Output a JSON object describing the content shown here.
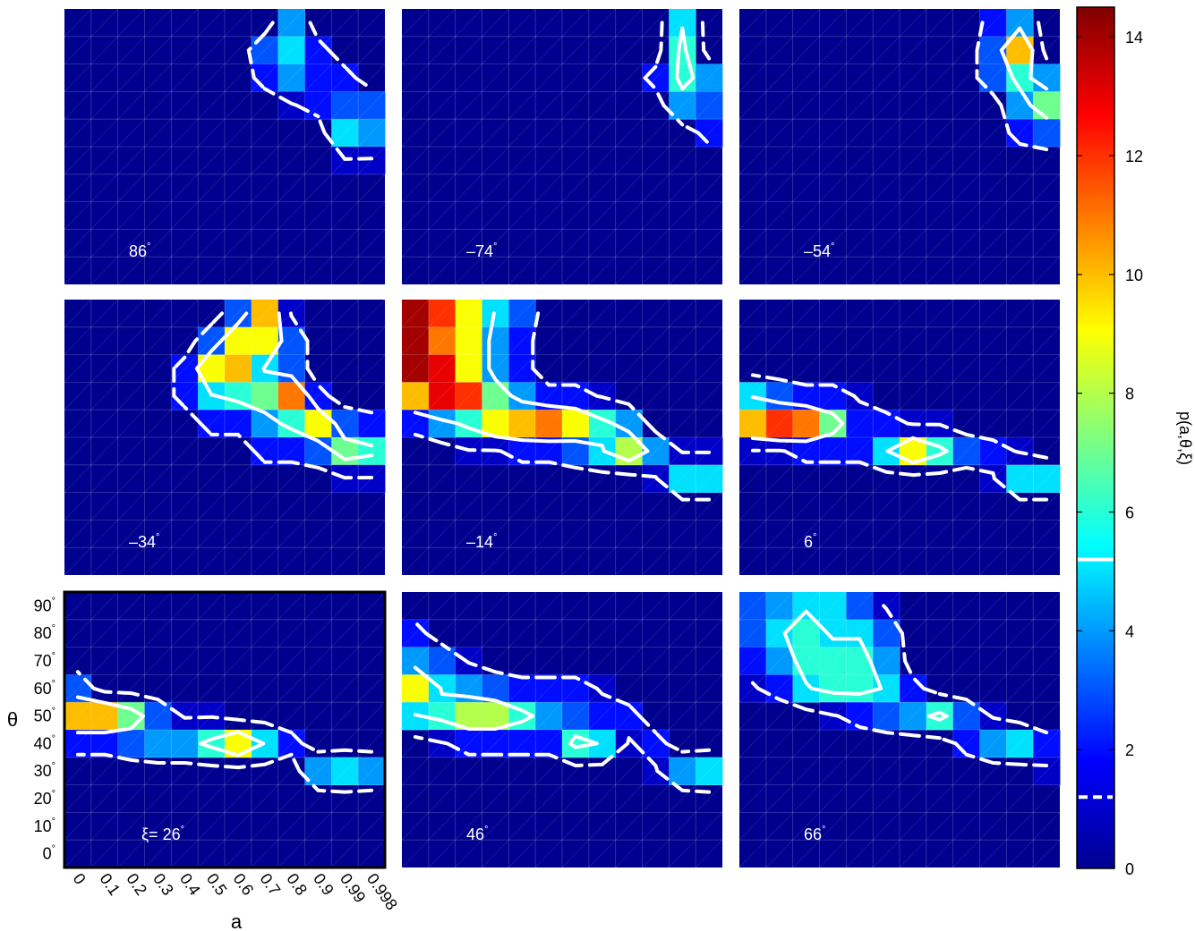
{
  "chart_data": {
    "type": "heatmap",
    "x_label": "a",
    "y_label": "θ",
    "x_ticks": [
      "0",
      "0.1",
      "0.2",
      "0.3",
      "0.4",
      "0.5",
      "0.6",
      "0.7",
      "0.8",
      "0.9",
      "0.99",
      "0.998"
    ],
    "y_ticks": [
      "0°",
      "10°",
      "20°",
      "30°",
      "40°",
      "50°",
      "60°",
      "70°",
      "80°",
      "90°"
    ],
    "colorbar": {
      "label": "p(a,θ,ξ)",
      "min": 0,
      "max": 14.5,
      "ticks": [
        0,
        2,
        4,
        6,
        8,
        10,
        12,
        14
      ],
      "solid_contour_level": 5.2,
      "dashed_contour_level": 1.2,
      "colormap": "jet"
    },
    "panels": [
      {
        "label": "86°",
        "grid": [
          [
            0,
            0,
            0,
            0,
            0,
            0,
            0,
            0,
            4,
            0,
            0,
            0
          ],
          [
            0,
            0,
            0,
            0,
            0,
            0,
            0,
            3,
            5,
            2,
            0,
            0
          ],
          [
            0,
            0,
            0,
            0,
            0,
            0,
            0,
            2,
            4,
            2,
            2,
            0
          ],
          [
            0,
            0,
            0,
            0,
            0,
            0,
            0,
            0,
            1,
            2,
            3,
            3
          ],
          [
            0,
            0,
            0,
            0,
            0,
            0,
            0,
            0,
            0,
            0,
            5,
            4
          ],
          [
            0,
            0,
            0,
            0,
            0,
            0,
            0,
            0,
            0,
            0,
            1,
            1
          ],
          [
            0,
            0,
            0,
            0,
            0,
            0,
            0,
            0,
            0,
            0,
            0,
            0
          ],
          [
            0,
            0,
            0,
            0,
            0,
            0,
            0,
            0,
            0,
            0,
            0,
            0
          ],
          [
            0,
            0,
            0,
            0,
            0,
            0,
            0,
            0,
            0,
            0,
            0,
            0
          ],
          [
            0,
            0,
            0,
            0,
            0,
            0,
            0,
            0,
            0,
            0,
            0,
            0
          ]
        ]
      },
      {
        "label": "–74°",
        "grid": [
          [
            0,
            0,
            0,
            0,
            0,
            0,
            0,
            0,
            0,
            0,
            5,
            0
          ],
          [
            0,
            0,
            0,
            0,
            0,
            0,
            0,
            0,
            0,
            0,
            6,
            0
          ],
          [
            0,
            0,
            0,
            0,
            0,
            0,
            0,
            0,
            0,
            2,
            6,
            4
          ],
          [
            0,
            0,
            0,
            0,
            0,
            0,
            0,
            0,
            0,
            0,
            4,
            3
          ],
          [
            0,
            0,
            0,
            0,
            0,
            0,
            0,
            0,
            0,
            0,
            0,
            2
          ],
          [
            0,
            0,
            0,
            0,
            0,
            0,
            0,
            0,
            0,
            0,
            0,
            0
          ],
          [
            0,
            0,
            0,
            0,
            0,
            0,
            0,
            0,
            0,
            0,
            0,
            0
          ],
          [
            0,
            0,
            0,
            0,
            0,
            0,
            0,
            0,
            0,
            0,
            0,
            0
          ],
          [
            0,
            0,
            0,
            0,
            0,
            0,
            0,
            0,
            0,
            0,
            0,
            0
          ],
          [
            0,
            0,
            0,
            0,
            0,
            0,
            0,
            0,
            0,
            0,
            0,
            0
          ]
        ]
      },
      {
        "label": "–54°",
        "grid": [
          [
            0,
            0,
            0,
            0,
            0,
            0,
            0,
            0,
            0,
            2,
            4,
            0
          ],
          [
            0,
            0,
            0,
            0,
            0,
            0,
            0,
            0,
            0,
            3,
            10,
            0
          ],
          [
            0,
            0,
            0,
            0,
            0,
            0,
            0,
            0,
            0,
            3,
            6,
            4
          ],
          [
            0,
            0,
            0,
            0,
            0,
            0,
            0,
            0,
            0,
            0,
            4,
            7
          ],
          [
            0,
            0,
            0,
            0,
            0,
            0,
            0,
            0,
            0,
            0,
            2,
            3
          ],
          [
            0,
            0,
            0,
            0,
            0,
            0,
            0,
            0,
            0,
            0,
            0,
            0
          ],
          [
            0,
            0,
            0,
            0,
            0,
            0,
            0,
            0,
            0,
            0,
            0,
            0
          ],
          [
            0,
            0,
            0,
            0,
            0,
            0,
            0,
            0,
            0,
            0,
            0,
            0
          ],
          [
            0,
            0,
            0,
            0,
            0,
            0,
            0,
            0,
            0,
            0,
            0,
            0
          ],
          [
            0,
            0,
            0,
            0,
            0,
            0,
            0,
            0,
            0,
            0,
            0,
            0
          ]
        ]
      },
      {
        "label": "–34°",
        "grid": [
          [
            0,
            0,
            0,
            0,
            0,
            0,
            3,
            10,
            1,
            0,
            0,
            0
          ],
          [
            0,
            0,
            0,
            0,
            0,
            3,
            9,
            9,
            3,
            0,
            0,
            0
          ],
          [
            0,
            0,
            0,
            0,
            2,
            9,
            10,
            5,
            3,
            0,
            0,
            0
          ],
          [
            0,
            0,
            0,
            0,
            2,
            5,
            6,
            7,
            11,
            2,
            0,
            0
          ],
          [
            0,
            0,
            0,
            0,
            0,
            2,
            2,
            4,
            6,
            9,
            3,
            2
          ],
          [
            0,
            0,
            0,
            0,
            0,
            0,
            0,
            2,
            2,
            3,
            7,
            6
          ],
          [
            0,
            0,
            0,
            0,
            0,
            0,
            0,
            0,
            0,
            0,
            1,
            1
          ],
          [
            0,
            0,
            0,
            0,
            0,
            0,
            0,
            0,
            0,
            0,
            0,
            0
          ],
          [
            0,
            0,
            0,
            0,
            0,
            0,
            0,
            0,
            0,
            0,
            0,
            0
          ],
          [
            0,
            0,
            0,
            0,
            0,
            0,
            0,
            0,
            0,
            0,
            0,
            0
          ]
        ]
      },
      {
        "label": "–14°",
        "grid": [
          [
            14,
            12,
            9,
            5,
            3,
            0,
            0,
            0,
            0,
            0,
            0,
            0
          ],
          [
            14,
            11,
            9,
            4,
            2,
            0,
            0,
            0,
            0,
            0,
            0,
            0
          ],
          [
            14,
            13,
            9,
            4,
            2,
            0,
            0,
            0,
            0,
            0,
            0,
            0
          ],
          [
            10,
            13,
            12,
            7,
            4,
            2,
            2,
            1,
            0,
            0,
            0,
            0
          ],
          [
            2,
            4,
            6,
            9,
            10,
            11,
            9,
            6,
            4,
            0,
            0,
            0
          ],
          [
            0,
            0,
            1,
            1,
            2,
            2,
            3,
            5,
            8,
            4,
            1,
            1
          ],
          [
            0,
            0,
            0,
            0,
            0,
            0,
            0,
            0,
            0,
            1,
            5,
            5
          ],
          [
            0,
            0,
            0,
            0,
            0,
            0,
            0,
            0,
            0,
            0,
            0,
            0
          ],
          [
            0,
            0,
            0,
            0,
            0,
            0,
            0,
            0,
            0,
            0,
            0,
            0
          ],
          [
            0,
            0,
            0,
            0,
            0,
            0,
            0,
            0,
            0,
            0,
            0,
            0
          ]
        ]
      },
      {
        "label": "6°",
        "grid": [
          [
            0,
            0,
            0,
            0,
            0,
            0,
            0,
            0,
            0,
            0,
            0,
            0
          ],
          [
            0,
            0,
            0,
            0,
            0,
            0,
            0,
            0,
            0,
            0,
            0,
            0
          ],
          [
            0,
            0,
            0,
            0,
            0,
            0,
            0,
            0,
            0,
            0,
            0,
            0
          ],
          [
            5,
            3,
            2,
            2,
            1,
            0,
            0,
            0,
            0,
            0,
            0,
            0
          ],
          [
            10,
            12,
            11,
            7,
            2,
            2,
            1,
            1,
            0,
            0,
            0,
            0
          ],
          [
            1,
            1,
            2,
            2,
            2,
            5,
            9,
            6,
            3,
            2,
            1,
            0
          ],
          [
            0,
            0,
            0,
            0,
            0,
            0,
            0,
            0,
            0,
            1,
            5,
            5
          ],
          [
            0,
            0,
            0,
            0,
            0,
            0,
            0,
            0,
            0,
            0,
            0,
            0
          ],
          [
            0,
            0,
            0,
            0,
            0,
            0,
            0,
            0,
            0,
            0,
            0,
            0
          ],
          [
            0,
            0,
            0,
            0,
            0,
            0,
            0,
            0,
            0,
            0,
            0,
            0
          ]
        ]
      },
      {
        "label": "ξ= 26°",
        "grid": [
          [
            0,
            0,
            0,
            0,
            0,
            0,
            0,
            0,
            0,
            0,
            0,
            0
          ],
          [
            0,
            0,
            0,
            0,
            0,
            0,
            0,
            0,
            0,
            0,
            0,
            0
          ],
          [
            0,
            0,
            0,
            0,
            0,
            0,
            0,
            0,
            0,
            0,
            0,
            0
          ],
          [
            3,
            0,
            0,
            0,
            0,
            0,
            0,
            0,
            0,
            0,
            0,
            0
          ],
          [
            10,
            10,
            7,
            3,
            1,
            1,
            0,
            0,
            0,
            0,
            0,
            0
          ],
          [
            2,
            2,
            3,
            4,
            4,
            6,
            9,
            5,
            2,
            0,
            0,
            0
          ],
          [
            0,
            0,
            0,
            0,
            0,
            0,
            0,
            0,
            0,
            4,
            5,
            4
          ],
          [
            0,
            0,
            0,
            0,
            0,
            0,
            0,
            0,
            0,
            0,
            0,
            0
          ],
          [
            0,
            0,
            0,
            0,
            0,
            0,
            0,
            0,
            0,
            0,
            0,
            0
          ],
          [
            0,
            0,
            0,
            0,
            0,
            0,
            0,
            0,
            0,
            0,
            0,
            0
          ]
        ]
      },
      {
        "label": "46°",
        "grid": [
          [
            0,
            0,
            0,
            0,
            0,
            0,
            0,
            0,
            0,
            0,
            0,
            0
          ],
          [
            2,
            0,
            0,
            0,
            0,
            0,
            0,
            0,
            0,
            0,
            0,
            0
          ],
          [
            4,
            3,
            1,
            0,
            0,
            0,
            0,
            0,
            0,
            0,
            0,
            0
          ],
          [
            9,
            5,
            4,
            3,
            2,
            2,
            2,
            1,
            0,
            0,
            0,
            0
          ],
          [
            5,
            6,
            8,
            8,
            6,
            4,
            3,
            2,
            2,
            0,
            0,
            0
          ],
          [
            0,
            1,
            2,
            2,
            2,
            2,
            6,
            5,
            1,
            2,
            0,
            0
          ],
          [
            0,
            0,
            0,
            0,
            0,
            0,
            0,
            0,
            0,
            1,
            4,
            5
          ],
          [
            0,
            0,
            0,
            0,
            0,
            0,
            0,
            0,
            0,
            0,
            0,
            0
          ],
          [
            0,
            0,
            0,
            0,
            0,
            0,
            0,
            0,
            0,
            0,
            0,
            0
          ],
          [
            0,
            0,
            0,
            0,
            0,
            0,
            0,
            0,
            0,
            0,
            0,
            0
          ]
        ]
      },
      {
        "label": "66°",
        "grid": [
          [
            3,
            4,
            5,
            5,
            3,
            1,
            0,
            0,
            0,
            0,
            0,
            0
          ],
          [
            3,
            5,
            6,
            5,
            5,
            3,
            0,
            0,
            0,
            0,
            0,
            0
          ],
          [
            2,
            4,
            6,
            6,
            6,
            4,
            0,
            0,
            0,
            0,
            0,
            0
          ],
          [
            1,
            2,
            5,
            6,
            6,
            5,
            2,
            0,
            0,
            0,
            0,
            0
          ],
          [
            0,
            0,
            0,
            1,
            2,
            3,
            4,
            6,
            3,
            1,
            0,
            0
          ],
          [
            0,
            0,
            0,
            0,
            0,
            0,
            0,
            0,
            2,
            4,
            5,
            2
          ],
          [
            0,
            0,
            0,
            0,
            0,
            0,
            0,
            0,
            0,
            0,
            0,
            1
          ],
          [
            0,
            0,
            0,
            0,
            0,
            0,
            0,
            0,
            0,
            0,
            0,
            0
          ],
          [
            0,
            0,
            0,
            0,
            0,
            0,
            0,
            0,
            0,
            0,
            0,
            0
          ],
          [
            0,
            0,
            0,
            0,
            0,
            0,
            0,
            0,
            0,
            0,
            0,
            0
          ]
        ]
      }
    ]
  }
}
